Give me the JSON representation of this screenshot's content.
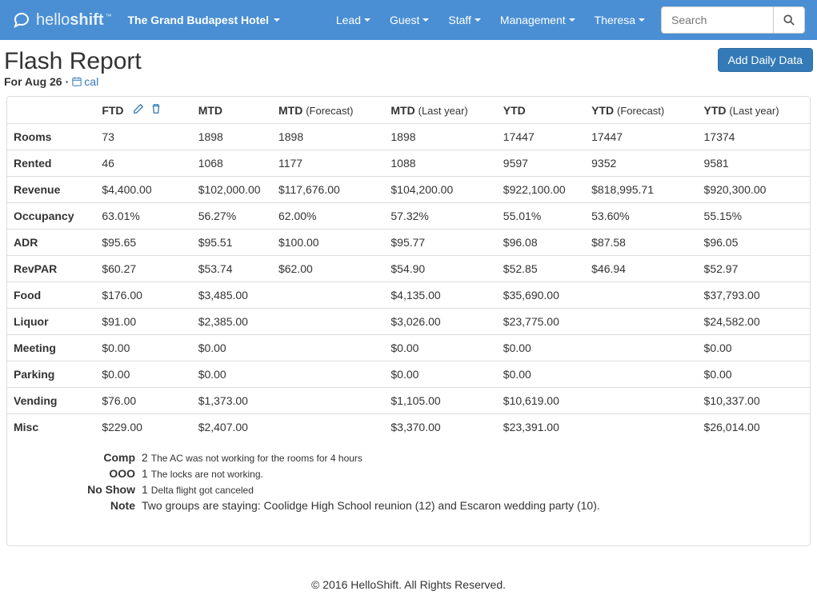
{
  "brand": {
    "hello": "hello",
    "shift": "shift",
    "tm": "™"
  },
  "hotel": "The Grand Budapest Hotel",
  "nav": {
    "lead": "Lead",
    "guest": "Guest",
    "staff": "Staff",
    "management": "Management",
    "user": "Theresa"
  },
  "search": {
    "placeholder": "Search"
  },
  "page": {
    "title": "Flash Report",
    "for": "For Aug 26",
    "cal": "cal",
    "add_btn": "Add Daily Data"
  },
  "columns": {
    "row_label": "",
    "ftd": "FTD",
    "mtd": "MTD",
    "mtd_fc": {
      "main": "MTD",
      "sub": "(Forecast)"
    },
    "mtd_ly": {
      "main": "MTD",
      "sub": "(Last year)"
    },
    "ytd": "YTD",
    "ytd_fc": {
      "main": "YTD",
      "sub": "(Forecast)"
    },
    "ytd_ly": {
      "main": "YTD",
      "sub": "(Last year)"
    }
  },
  "rows": [
    {
      "label": "Rooms",
      "ftd": "73",
      "mtd": "1898",
      "mtd_fc": "1898",
      "mtd_ly": "1898",
      "ytd": "17447",
      "ytd_fc": "17447",
      "ytd_ly": "17374"
    },
    {
      "label": "Rented",
      "ftd": "46",
      "mtd": "1068",
      "mtd_fc": "1177",
      "mtd_ly": "1088",
      "ytd": "9597",
      "ytd_fc": "9352",
      "ytd_ly": "9581"
    },
    {
      "label": "Revenue",
      "ftd": "$4,400.00",
      "mtd": "$102,000.00",
      "mtd_fc": "$117,676.00",
      "mtd_ly": "$104,200.00",
      "ytd": "$922,100.00",
      "ytd_fc": "$818,995.71",
      "ytd_ly": "$920,300.00"
    },
    {
      "label": "Occupancy",
      "ftd": "63.01%",
      "mtd": "56.27%",
      "mtd_fc": "62.00%",
      "mtd_ly": "57.32%",
      "ytd": "55.01%",
      "ytd_fc": "53.60%",
      "ytd_ly": "55.15%"
    },
    {
      "label": "ADR",
      "ftd": "$95.65",
      "mtd": "$95.51",
      "mtd_fc": "$100.00",
      "mtd_ly": "$95.77",
      "ytd": "$96.08",
      "ytd_fc": "$87.58",
      "ytd_ly": "$96.05"
    },
    {
      "label": "RevPAR",
      "ftd": "$60.27",
      "mtd": "$53.74",
      "mtd_fc": "$62.00",
      "mtd_ly": "$54.90",
      "ytd": "$52.85",
      "ytd_fc": "$46.94",
      "ytd_ly": "$52.97"
    },
    {
      "label": "Food",
      "ftd": "$176.00",
      "mtd": "$3,485.00",
      "mtd_fc": "",
      "mtd_ly": "$4,135.00",
      "ytd": "$35,690.00",
      "ytd_fc": "",
      "ytd_ly": "$37,793.00"
    },
    {
      "label": "Liquor",
      "ftd": "$91.00",
      "mtd": "$2,385.00",
      "mtd_fc": "",
      "mtd_ly": "$3,026.00",
      "ytd": "$23,775.00",
      "ytd_fc": "",
      "ytd_ly": "$24,582.00"
    },
    {
      "label": "Meeting",
      "ftd": "$0.00",
      "mtd": "$0.00",
      "mtd_fc": "",
      "mtd_ly": "$0.00",
      "ytd": "$0.00",
      "ytd_fc": "",
      "ytd_ly": "$0.00"
    },
    {
      "label": "Parking",
      "ftd": "$0.00",
      "mtd": "$0.00",
      "mtd_fc": "",
      "mtd_ly": "$0.00",
      "ytd": "$0.00",
      "ytd_fc": "",
      "ytd_ly": "$0.00"
    },
    {
      "label": "Vending",
      "ftd": "$76.00",
      "mtd": "$1,373.00",
      "mtd_fc": "",
      "mtd_ly": "$1,105.00",
      "ytd": "$10,619.00",
      "ytd_fc": "",
      "ytd_ly": "$10,337.00"
    },
    {
      "label": "Misc",
      "ftd": "$229.00",
      "mtd": "$2,407.00",
      "mtd_fc": "",
      "mtd_ly": "$3,370.00",
      "ytd": "$23,391.00",
      "ytd_fc": "",
      "ytd_ly": "$26,014.00"
    }
  ],
  "notes": {
    "comp": {
      "label": "Comp",
      "count": "2",
      "text": "The AC was not working for the rooms for 4 hours"
    },
    "ooo": {
      "label": "OOO",
      "count": "1",
      "text": "The locks are not working."
    },
    "noshow": {
      "label": "No Show",
      "count": "1",
      "text": "Delta flight got canceled"
    },
    "note": {
      "label": "Note",
      "text": "Two groups are staying: Coolidge High School reunion (12) and Escaron wedding party (10)."
    }
  },
  "footer": "© 2016 HelloShift. All Rights Reserved."
}
